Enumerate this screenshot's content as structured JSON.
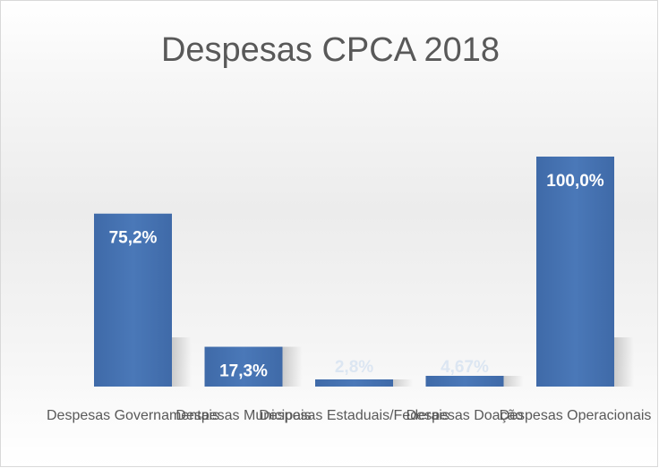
{
  "chart_data": {
    "type": "bar",
    "title": "Despesas CPCA 2018",
    "categories": [
      "Despesas Governamentais",
      "Despesas Municipais",
      "Despesas Estaduais/Federais",
      "Despesas Doação",
      "Despesas Operacionais"
    ],
    "values": [
      75.2,
      17.3,
      2.8,
      4.67,
      100.0
    ],
    "value_labels": [
      "75,2%",
      "17,3%",
      "2,8%",
      "4,67%",
      "100,0%"
    ],
    "ylim": [
      0,
      100
    ],
    "grid": false,
    "legend": "none",
    "colors": {
      "bar": "#4a78b8",
      "bar_dark": "#3c67a3",
      "label": "#ffffff",
      "label_faint": "#dce6f2"
    }
  }
}
